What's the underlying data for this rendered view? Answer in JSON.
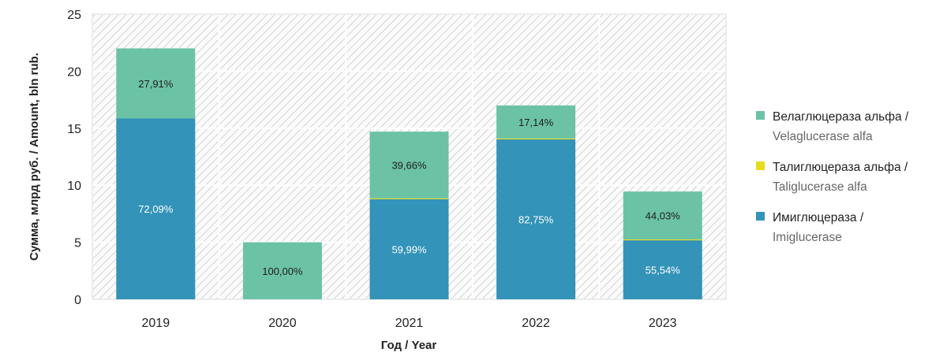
{
  "chart_data": {
    "type": "bar",
    "stacked": true,
    "categories": [
      "2019",
      "2020",
      "2021",
      "2022",
      "2023"
    ],
    "series": [
      {
        "name": "Имиглюцераза / Imiglucerase",
        "color": "#3393b8",
        "values": [
          15.85,
          0,
          8.8,
          14.05,
          5.2
        ],
        "labels": [
          "72,09%",
          "",
          "59,99%",
          "82,75%",
          "55,54%"
        ]
      },
      {
        "name": "Талиглюцераза альфа / Taliglucerase alfa",
        "color": "#e6dc1e",
        "values": [
          0,
          0,
          0.05,
          0.05,
          0.05
        ],
        "labels": [
          "",
          "",
          "",
          "",
          ""
        ]
      },
      {
        "name": "Велаглюцераза альфа / Velaglucerase alfa",
        "color": "#6cc2a5",
        "values": [
          6.15,
          5.0,
          5.85,
          2.9,
          4.2
        ],
        "labels": [
          "27,91%",
          "100,00%",
          "39,66%",
          "17,14%",
          "44,03%"
        ]
      }
    ],
    "xlabel": "Год / Year",
    "ylabel": "Сумма, млрд руб. / Amount, bln rub.",
    "ylim": [
      0,
      25
    ],
    "yticks": [
      0,
      5,
      10,
      15,
      20,
      25
    ],
    "grid": true,
    "legend_position": "right"
  },
  "legend": [
    {
      "ru": "Велаглюцераза альфа /",
      "en": "Velaglucerase alfa",
      "color": "#6cc2a5"
    },
    {
      "ru": "Талиглюцераза альфа /",
      "en": "Taliglucerase alfa",
      "color": "#e6dc1e"
    },
    {
      "ru": "Имиглюцераза /",
      "en": "Imiglucerase",
      "color": "#3393b8"
    }
  ]
}
